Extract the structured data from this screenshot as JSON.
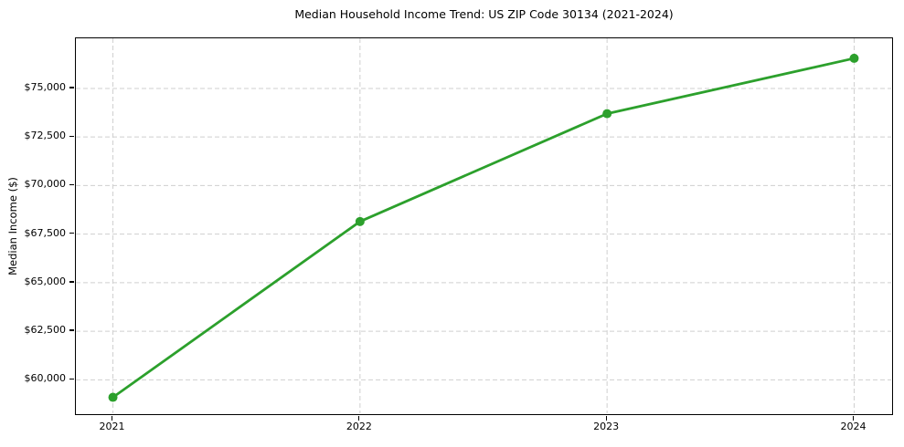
{
  "chart_data": {
    "type": "line",
    "title": "Median Household Income Trend: US ZIP Code 30134 (2021-2024)",
    "xlabel": "",
    "ylabel": "Median Income ($)",
    "categories": [
      "2021",
      "2022",
      "2023",
      "2024"
    ],
    "series": [
      {
        "name": "Median Household Income",
        "values": [
          59100,
          68150,
          73700,
          76550
        ],
        "color": "#2ca02c",
        "marker": "circle",
        "marker_radius": 5,
        "line_width": 2.8
      }
    ],
    "y_ticks": [
      {
        "value": 60000,
        "label": "$60,000"
      },
      {
        "value": 62500,
        "label": "$62,500"
      },
      {
        "value": 65000,
        "label": "$65,000"
      },
      {
        "value": 67500,
        "label": "$67,500"
      },
      {
        "value": 70000,
        "label": "$70,000"
      },
      {
        "value": 72500,
        "label": "$72,500"
      },
      {
        "value": 75000,
        "label": "$75,000"
      }
    ],
    "ylim": [
      58280,
      77580
    ],
    "x_margin": 0.05,
    "grid": "both",
    "grid_style": "dashed",
    "grid_color": "#cfcfcf",
    "spine_color": "#000000",
    "background_color": "#ffffff",
    "legend": "none"
  }
}
